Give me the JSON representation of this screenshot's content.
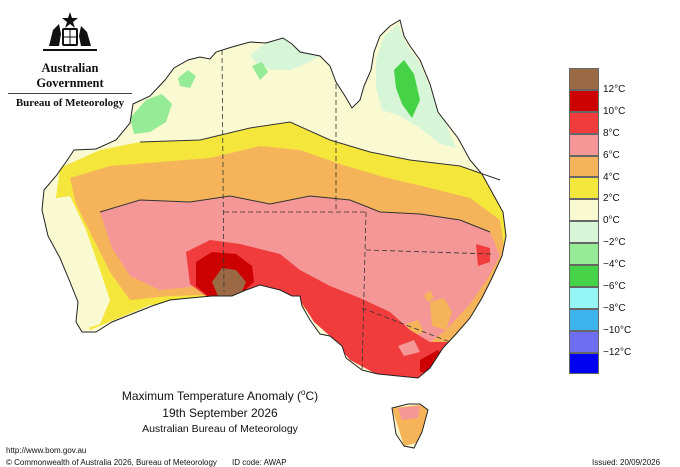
{
  "header": {
    "government": "Australian Government",
    "bureau": "Bureau of Meteorology",
    "logo_icon": "coat-of-arms-icon"
  },
  "legend": {
    "unit": "°C",
    "items": [
      {
        "label": "",
        "color": "#9b6a45"
      },
      {
        "label": "12°C",
        "color": "#cc0000"
      },
      {
        "label": "10°C",
        "color": "#f03c3c"
      },
      {
        "label": "8°C",
        "color": "#f59797"
      },
      {
        "label": "6°C",
        "color": "#f5b45a"
      },
      {
        "label": "4°C",
        "color": "#f5e63c"
      },
      {
        "label": "2°C",
        "color": "#fafad2"
      },
      {
        "label": "0°C",
        "color": "#d7f5d7"
      },
      {
        "label": "−2°C",
        "color": "#96eb96"
      },
      {
        "label": "−4°C",
        "color": "#46d246"
      },
      {
        "label": "−6°C",
        "color": "#96f5f5"
      },
      {
        "label": "−8°C",
        "color": "#3cb4eb"
      },
      {
        "label": "−10°C",
        "color": "#6e6ef0"
      },
      {
        "label": "−12°C",
        "color": "#0000f0"
      }
    ]
  },
  "map": {
    "title_prefix": "Maximum Temperature Anomaly (",
    "title_unit": "o",
    "title_suffix": "C)",
    "date": "19th September 2026",
    "organisation": "Australian Bureau of Meteorology"
  },
  "footer": {
    "url": "http://www.bom.gov.au",
    "copyright": "© Commonwealth of Australia 2026, Bureau of Meteorology",
    "id_code": "ID code: AWAP",
    "issued": "Issued: 20/09/2026"
  }
}
